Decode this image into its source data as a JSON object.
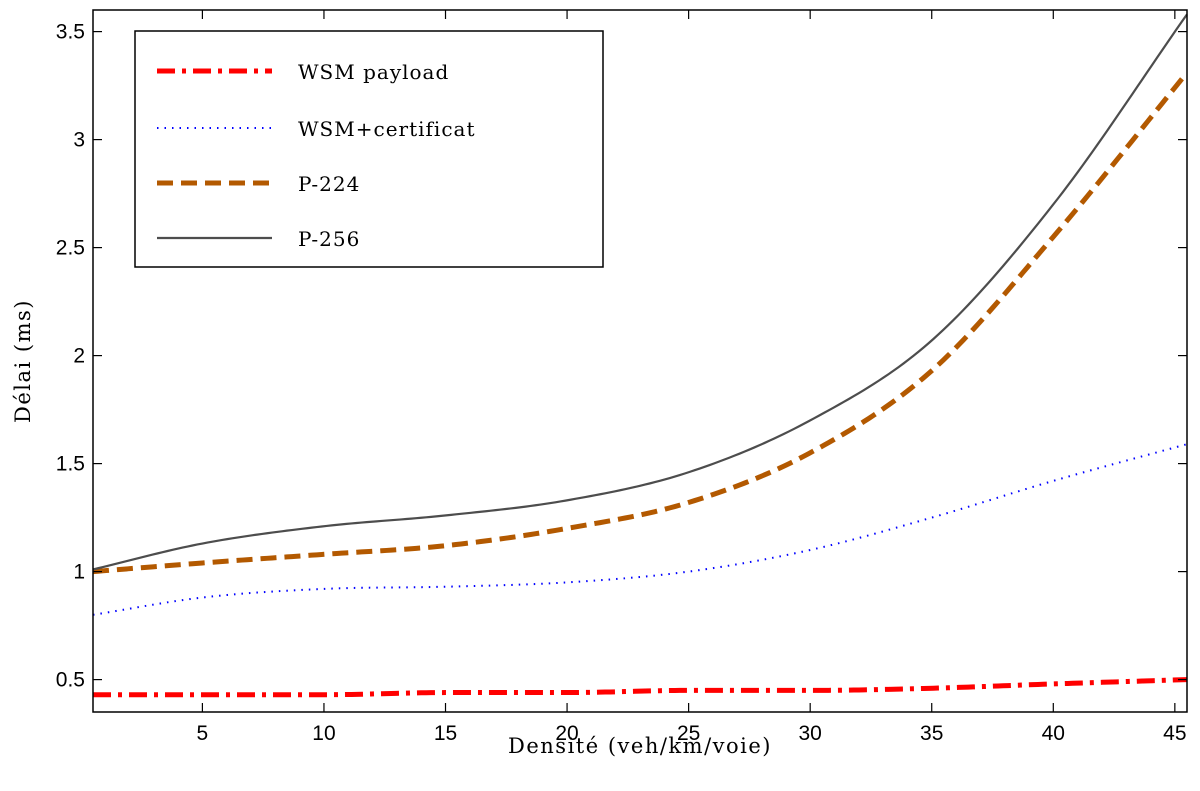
{
  "chart_data": {
    "type": "line",
    "title": "",
    "xlabel": "Densité (veh/km/voie)",
    "ylabel": "Délai (ms)",
    "xlim": [
      0.5,
      45.5
    ],
    "ylim": [
      0.35,
      3.6
    ],
    "xticks": [
      5,
      10,
      15,
      20,
      25,
      30,
      35,
      40,
      45
    ],
    "xtick_labels": [
      "5",
      "10",
      "15",
      "20",
      "25",
      "30",
      "35",
      "40",
      "45"
    ],
    "yticks": [
      0.5,
      1,
      1.5,
      2,
      2.5,
      3,
      3.5
    ],
    "ytick_labels": [
      "0.5",
      "1",
      "1.5",
      "2",
      "2.5",
      "3",
      "3.5"
    ],
    "grid": false,
    "legend_position": "top-left",
    "x": [
      0.5,
      5,
      10,
      15,
      20,
      25,
      30,
      35,
      40,
      45.5
    ],
    "series": [
      {
        "name": "WSM payload",
        "color": "#ff0000",
        "style": "dashdot",
        "values": [
          0.43,
          0.43,
          0.43,
          0.44,
          0.44,
          0.45,
          0.45,
          0.46,
          0.48,
          0.5
        ]
      },
      {
        "name": "WSM+certificat",
        "color": "#0000ff",
        "style": "dotted",
        "values": [
          0.8,
          0.88,
          0.92,
          0.93,
          0.95,
          1.0,
          1.1,
          1.25,
          1.42,
          1.59
        ]
      },
      {
        "name": "P-224",
        "color": "#b35900",
        "style": "dashed",
        "values": [
          1.0,
          1.04,
          1.08,
          1.12,
          1.2,
          1.32,
          1.55,
          1.93,
          2.55,
          3.31
        ]
      },
      {
        "name": "P-256",
        "color": "#4d4d4d",
        "style": "solid",
        "values": [
          1.01,
          1.13,
          1.21,
          1.26,
          1.33,
          1.46,
          1.7,
          2.07,
          2.7,
          3.58
        ]
      }
    ]
  }
}
